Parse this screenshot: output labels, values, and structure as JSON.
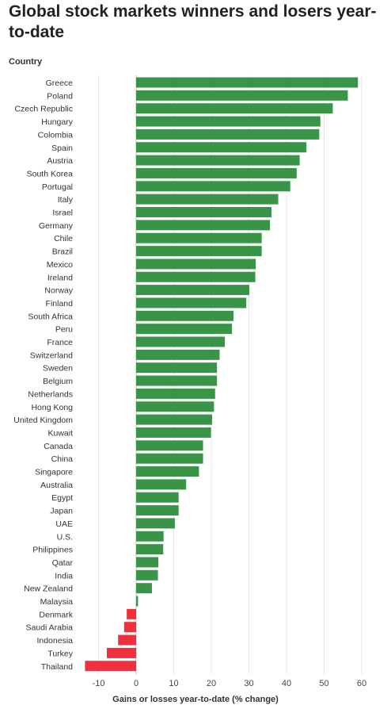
{
  "chart_data": {
    "type": "bar",
    "orientation": "horizontal",
    "title": "Global stock markets winners and losers year-to-date",
    "category_label": "Country",
    "xlabel": "Gains or losses year-to-date (% change)",
    "xlim": [
      -13,
      61
    ],
    "xticks": [
      -10,
      0,
      10,
      20,
      30,
      40,
      50,
      60
    ],
    "grid": true,
    "colors": {
      "positive": "#3a9448",
      "negative": "#f0313d"
    },
    "categories": [
      "Greece",
      "Poland",
      "Czech Republic",
      "Hungary",
      "Colombia",
      "Spain",
      "Austria",
      "South Korea",
      "Portugal",
      "Italy",
      "Israel",
      "Germany",
      "Chile",
      "Brazil",
      "Mexico",
      "Ireland",
      "Norway",
      "Finland",
      "South Africa",
      "Peru",
      "France",
      "Switzerland",
      "Sweden",
      "Belgium",
      "Netherlands",
      "Hong Kong",
      "United Kingdom",
      "Kuwait",
      "Canada",
      "China",
      "Singapore",
      "Australia",
      "Egypt",
      "Japan",
      "UAE",
      "U.S.",
      "Philippines",
      "Qatar",
      "India",
      "New Zealand",
      "Malaysia",
      "Denmark",
      "Saudi Arabia",
      "Indonesia",
      "Turkey",
      "Thailand"
    ],
    "values": [
      59,
      56.3,
      52.3,
      49,
      48.7,
      45.3,
      43.5,
      42.7,
      41,
      37.8,
      36,
      35.6,
      33.4,
      33.4,
      31.8,
      31.7,
      30.1,
      29.3,
      25.9,
      25.5,
      23.6,
      22.2,
      21.5,
      21.5,
      21,
      20.7,
      20.2,
      19.9,
      17.8,
      17.8,
      16.7,
      13.3,
      11.3,
      11.3,
      10.3,
      7.3,
      7.2,
      5.9,
      5.8,
      4.2,
      0.5,
      -2.5,
      -3.2,
      -4.8,
      -7.8,
      -13.6
    ]
  }
}
